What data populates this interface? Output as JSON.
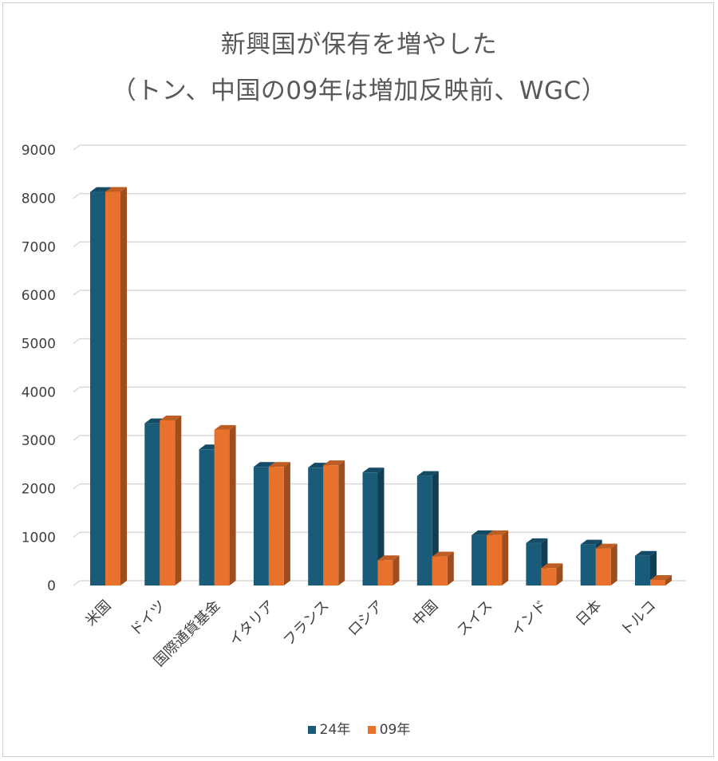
{
  "chart_data": {
    "type": "bar",
    "title_line1": "新興国が保有を増やした",
    "title_line2": "（トン、中国の09年は増加反映前、WGC）",
    "categories": [
      "米国",
      "ドイツ",
      "国際通貨基金",
      "イタリア",
      "フランス",
      "ロシア",
      "中国",
      "スイス",
      "インド",
      "日本",
      "トルコ"
    ],
    "series": [
      {
        "name": "24年",
        "color": "#1a5b7a",
        "values": [
          8133,
          3352,
          2814,
          2452,
          2437,
          2336,
          2264,
          1040,
          876,
          846,
          615
        ]
      },
      {
        "name": "09年",
        "color": "#e8722c",
        "values": [
          8134,
          3412,
          3217,
          2452,
          2487,
          523,
          600,
          1040,
          358,
          765,
          116
        ]
      }
    ],
    "yticks": [
      "0",
      "1000",
      "2000",
      "3000",
      "4000",
      "5000",
      "6000",
      "7000",
      "8000",
      "9000"
    ],
    "ylim": [
      0,
      9000
    ],
    "grid": true,
    "legend_position": "bottom",
    "xlabel": "",
    "ylabel": ""
  }
}
